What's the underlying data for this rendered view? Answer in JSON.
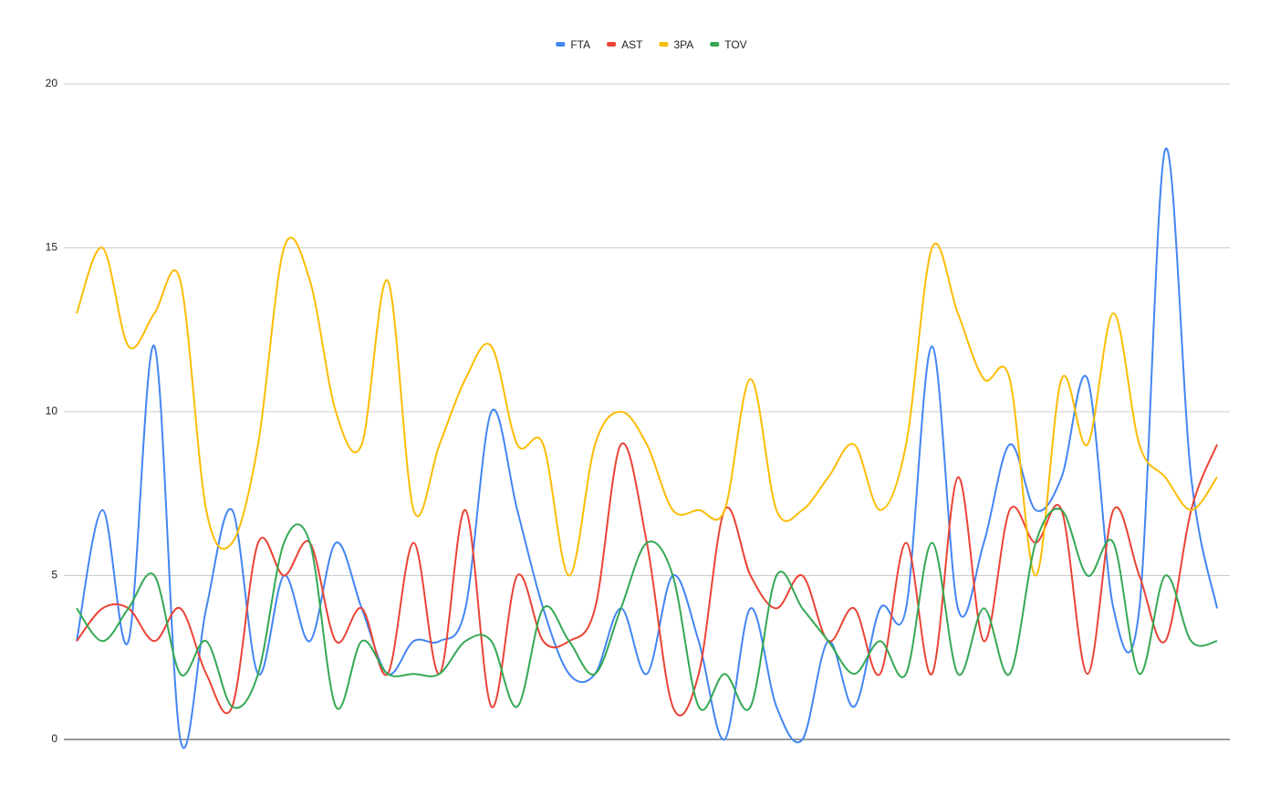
{
  "chart_data": {
    "type": "line",
    "smooth": true,
    "categories": [
      null,
      null,
      null,
      null,
      null,
      null,
      null,
      null,
      null,
      null,
      null,
      null,
      null,
      null,
      null,
      null,
      null,
      null,
      null,
      null,
      null,
      null,
      null,
      null,
      null,
      null,
      null,
      null,
      null,
      null,
      null,
      null,
      null,
      null,
      null,
      null,
      null,
      null,
      null,
      null,
      null,
      null,
      null,
      null,
      null
    ],
    "series": [
      {
        "name": "FTA",
        "color": "#4285f4",
        "values": [
          3,
          7,
          3,
          12,
          0,
          4,
          7,
          2,
          5,
          3,
          6,
          4,
          2,
          3,
          3,
          4,
          10,
          7,
          4,
          2,
          2,
          4,
          2,
          5,
          3,
          0,
          4,
          1,
          0,
          3,
          1,
          4,
          4,
          12,
          4,
          6,
          9,
          7,
          8,
          11,
          4,
          4,
          18,
          8,
          4
        ]
      },
      {
        "name": "AST",
        "color": "#ea4335",
        "values": [
          3,
          4,
          4,
          3,
          4,
          2,
          1,
          6,
          5,
          6,
          3,
          4,
          2,
          6,
          2,
          7,
          1,
          5,
          3,
          3,
          4,
          9,
          6,
          1,
          2,
          7,
          5,
          4,
          5,
          3,
          4,
          2,
          6,
          2,
          8,
          3,
          7,
          6,
          7,
          2,
          7,
          5,
          3,
          7,
          9
        ]
      },
      {
        "name": "3PA",
        "color": "#fbbc04",
        "values": [
          13,
          15,
          12,
          13,
          14,
          7,
          6,
          9,
          15,
          14,
          10,
          9,
          14,
          7,
          9,
          11,
          12,
          9,
          9,
          5,
          9,
          10,
          9,
          7,
          7,
          7,
          11,
          7,
          7,
          8,
          9,
          7,
          9,
          15,
          13,
          11,
          11,
          5,
          11,
          9,
          13,
          9,
          8,
          7,
          8
        ]
      },
      {
        "name": "TOV",
        "color": "#34a853",
        "values": [
          4,
          3,
          4,
          5,
          2,
          3,
          1,
          2,
          6,
          6,
          1,
          3,
          2,
          2,
          2,
          3,
          3,
          1,
          4,
          3,
          2,
          4,
          6,
          5,
          1,
          2,
          1,
          5,
          4,
          3,
          2,
          3,
          2,
          6,
          2,
          4,
          2,
          6,
          7,
          5,
          6,
          2,
          5,
          3,
          3
        ]
      }
    ],
    "ylim": [
      0,
      20
    ],
    "yticks": [
      0,
      5,
      10,
      15,
      20
    ],
    "grid": true,
    "legend": "top"
  }
}
